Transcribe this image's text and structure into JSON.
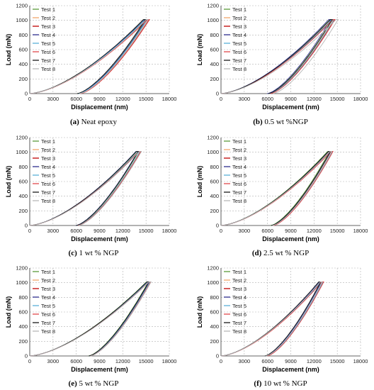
{
  "figure": {
    "captions": [
      {
        "label": "(a)",
        "text": "Neat epoxy"
      },
      {
        "label": "(b)",
        "text": "0.5 wt %NGP"
      },
      {
        "label": "(c)",
        "text": "1 wt % NGP"
      },
      {
        "label": "(d)",
        "text": "2.5 wt % NGP"
      },
      {
        "label": "(e)",
        "text": "5 wt % NGP"
      },
      {
        "label": "(f)",
        "text": "10 wt % NGP"
      }
    ]
  },
  "legend_colors": {
    "Test 1": "#5a9a3a",
    "Test 2": "#f2a66a",
    "Test 3": "#c00000",
    "Test 4": "#2f2f8f",
    "Test 5": "#5ab0d8",
    "Test 6": "#e0484a",
    "Test 7": "#1a1a1a",
    "Test 8": "#b8b8b8"
  },
  "chart_data": [
    {
      "type": "line",
      "xlabel": "Displacement (nm)",
      "ylabel": "Load (mN)",
      "xlim": [
        0,
        18000
      ],
      "ylim": [
        0,
        1200
      ],
      "xticks": [
        0,
        3000,
        6000,
        9000,
        12000,
        15000,
        18000
      ],
      "yticks": [
        0,
        200,
        400,
        600,
        800,
        1000,
        1200
      ],
      "grid": true,
      "legend": "top-left",
      "series_names": [
        "Test 1",
        "Test 2",
        "Test 3",
        "Test 4",
        "Test 5",
        "Test 6",
        "Test 7",
        "Test 8"
      ],
      "load_curve": {
        "max_displacement": 14900,
        "max_load": 1010,
        "residual_displacement": 6300
      },
      "test_offsets": [
        -200,
        100,
        250,
        -100,
        0,
        300,
        -250,
        150
      ]
    },
    {
      "type": "line",
      "xlabel": "Displacement (nm)",
      "ylabel": "Load (mN)",
      "xlim": [
        0,
        18000
      ],
      "ylim": [
        0,
        1200
      ],
      "xticks": [
        0,
        3000,
        6000,
        9000,
        12000,
        15000,
        18000
      ],
      "yticks": [
        0,
        200,
        400,
        600,
        800,
        1000,
        1200
      ],
      "grid": true,
      "legend": "top-left",
      "series_names": [
        "Test 1",
        "Test 2",
        "Test 3",
        "Test 4",
        "Test 5",
        "Test 6",
        "Test 7",
        "Test 8"
      ],
      "load_curve": {
        "max_displacement": 14200,
        "max_load": 1010,
        "residual_displacement": 6200
      },
      "test_offsets": [
        -150,
        50,
        200,
        -300,
        100,
        250,
        -100,
        650
      ]
    },
    {
      "type": "line",
      "xlabel": "Displacement (nm)",
      "ylabel": "Load (mN)",
      "xlim": [
        0,
        18000
      ],
      "ylim": [
        0,
        1200
      ],
      "xticks": [
        0,
        3000,
        6000,
        9000,
        12000,
        15000,
        18000
      ],
      "yticks": [
        0,
        200,
        400,
        600,
        800,
        1000,
        1200
      ],
      "grid": true,
      "legend": "top-left",
      "series_names": [
        "Test 1",
        "Test 2",
        "Test 3",
        "Test 4",
        "Test 5",
        "Test 6",
        "Test 7",
        "Test 8"
      ],
      "load_curve": {
        "max_displacement": 13900,
        "max_load": 1010,
        "residual_displacement": 6100
      },
      "test_offsets": [
        -100,
        100,
        200,
        -200,
        50,
        150,
        -150,
        250
      ]
    },
    {
      "type": "line",
      "xlabel": "Displacement (nm)",
      "ylabel": "Load (mN)",
      "xlim": [
        0,
        18000
      ],
      "ylim": [
        0,
        1200
      ],
      "xticks": [
        0,
        3000,
        6000,
        9000,
        12000,
        15000,
        18000
      ],
      "yticks": [
        0,
        200,
        400,
        600,
        800,
        1000,
        1200
      ],
      "grid": true,
      "legend": "top-left",
      "series_names": [
        "Test 1",
        "Test 2",
        "Test 3",
        "Test 4",
        "Test 5",
        "Test 6",
        "Test 7",
        "Test 8"
      ],
      "load_curve": {
        "max_displacement": 14000,
        "max_load": 1010,
        "residual_displacement": 6600
      },
      "test_offsets": [
        -250,
        0,
        150,
        -100,
        100,
        200,
        -150,
        50
      ]
    },
    {
      "type": "line",
      "xlabel": "Displacement (nm)",
      "ylabel": "Load (mN)",
      "xlim": [
        0,
        18000
      ],
      "ylim": [
        0,
        1200
      ],
      "xticks": [
        0,
        3000,
        6000,
        9000,
        12000,
        15000,
        18000
      ],
      "yticks": [
        0,
        200,
        400,
        600,
        800,
        1000,
        1200
      ],
      "grid": true,
      "legend": "top-left",
      "series_names": [
        "Test 1",
        "Test 2",
        "Test 3",
        "Test 4",
        "Test 5",
        "Test 6",
        "Test 7",
        "Test 8"
      ],
      "load_curve": {
        "max_displacement": 15200,
        "max_load": 1010,
        "residual_displacement": 7700
      },
      "test_offsets": [
        -150,
        100,
        0,
        -50,
        50,
        150,
        -100,
        200
      ]
    },
    {
      "type": "line",
      "xlabel": "Displacement (nm)",
      "ylabel": "Load (mN)",
      "xlim": [
        0,
        18000
      ],
      "ylim": [
        0,
        1200
      ],
      "xticks": [
        0,
        3000,
        6000,
        9000,
        12000,
        15000,
        18000
      ],
      "yticks": [
        0,
        200,
        400,
        600,
        800,
        1000,
        1200
      ],
      "grid": true,
      "legend": "top-left",
      "series_names": [
        "Test 1",
        "Test 2",
        "Test 3",
        "Test 4",
        "Test 5",
        "Test 6",
        "Test 7",
        "Test 8"
      ],
      "load_curve": {
        "max_displacement": 12800,
        "max_load": 1010,
        "residual_displacement": 5800
      },
      "test_offsets": [
        -150,
        50,
        150,
        -100,
        100,
        200,
        -200,
        0
      ]
    }
  ]
}
